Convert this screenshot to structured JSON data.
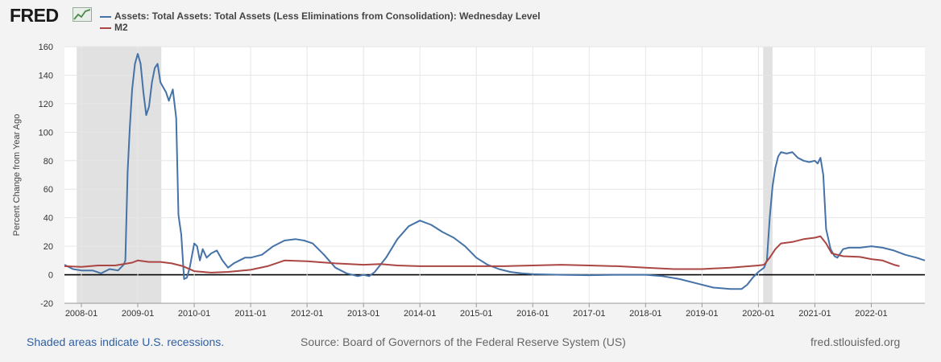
{
  "brand": {
    "logo_text": "FRED"
  },
  "legend": [
    {
      "label": "Assets: Total Assets: Total Assets (Less Eliminations from Consolidation): Wednesday Level",
      "color": "#4572a7"
    },
    {
      "label": "M2",
      "color": "#aa4643"
    }
  ],
  "footer": {
    "recession_note": "Shaded areas indicate U.S. recessions.",
    "source": "Source: Board of Governors of the Federal Reserve System (US)",
    "site": "fred.stlouisfed.org"
  },
  "chart_data": {
    "type": "line",
    "ylabel": "Percent Change from Year Ago",
    "ylim": [
      -20,
      160
    ],
    "yticks": [
      -20,
      0,
      20,
      40,
      60,
      80,
      100,
      120,
      140,
      160
    ],
    "xlim": [
      2007.7,
      2022.95
    ],
    "xticks": [
      "2008-01",
      "2009-01",
      "2010-01",
      "2011-01",
      "2012-01",
      "2013-01",
      "2014-01",
      "2015-01",
      "2016-01",
      "2017-01",
      "2018-01",
      "2019-01",
      "2020-01",
      "2021-01",
      "2022-01"
    ],
    "grid": true,
    "legend_position": "top",
    "recessions": [
      [
        2007.917,
        2009.417
      ],
      [
        2020.083,
        2020.25
      ]
    ],
    "series": [
      {
        "name": "Assets: Total Assets: Total Assets (Less Eliminations from Consolidation): Wednesday Level",
        "color": "#4572a7",
        "points": [
          [
            2007.7,
            7
          ],
          [
            2007.85,
            4
          ],
          [
            2008.0,
            3
          ],
          [
            2008.2,
            3
          ],
          [
            2008.35,
            1
          ],
          [
            2008.5,
            4
          ],
          [
            2008.65,
            3
          ],
          [
            2008.75,
            7
          ],
          [
            2008.78,
            10
          ],
          [
            2008.82,
            72
          ],
          [
            2008.86,
            104
          ],
          [
            2008.9,
            130
          ],
          [
            2008.95,
            148
          ],
          [
            2009.0,
            155
          ],
          [
            2009.05,
            148
          ],
          [
            2009.1,
            128
          ],
          [
            2009.15,
            112
          ],
          [
            2009.2,
            118
          ],
          [
            2009.25,
            135
          ],
          [
            2009.3,
            145
          ],
          [
            2009.35,
            148
          ],
          [
            2009.4,
            135
          ],
          [
            2009.5,
            128
          ],
          [
            2009.55,
            122
          ],
          [
            2009.62,
            130
          ],
          [
            2009.68,
            110
          ],
          [
            2009.72,
            42
          ],
          [
            2009.77,
            28
          ],
          [
            2009.82,
            -3
          ],
          [
            2009.87,
            -2
          ],
          [
            2009.92,
            5
          ],
          [
            2010.0,
            22
          ],
          [
            2010.05,
            20
          ],
          [
            2010.1,
            10
          ],
          [
            2010.15,
            18
          ],
          [
            2010.22,
            12
          ],
          [
            2010.3,
            15
          ],
          [
            2010.4,
            17
          ],
          [
            2010.5,
            10
          ],
          [
            2010.6,
            5
          ],
          [
            2010.7,
            8
          ],
          [
            2010.8,
            10
          ],
          [
            2010.9,
            12
          ],
          [
            2011.0,
            12
          ],
          [
            2011.2,
            14
          ],
          [
            2011.4,
            20
          ],
          [
            2011.6,
            24
          ],
          [
            2011.8,
            25
          ],
          [
            2011.95,
            24
          ],
          [
            2012.1,
            22
          ],
          [
            2012.3,
            14
          ],
          [
            2012.5,
            5
          ],
          [
            2012.7,
            1
          ],
          [
            2012.9,
            -1
          ],
          [
            2013.0,
            0
          ],
          [
            2013.1,
            -1
          ],
          [
            2013.2,
            2
          ],
          [
            2013.4,
            12
          ],
          [
            2013.6,
            25
          ],
          [
            2013.8,
            34
          ],
          [
            2014.0,
            38
          ],
          [
            2014.2,
            35
          ],
          [
            2014.4,
            30
          ],
          [
            2014.6,
            26
          ],
          [
            2014.8,
            20
          ],
          [
            2015.0,
            12
          ],
          [
            2015.2,
            7
          ],
          [
            2015.4,
            4
          ],
          [
            2015.6,
            2
          ],
          [
            2015.8,
            1
          ],
          [
            2016.0,
            0.5
          ],
          [
            2016.5,
            0
          ],
          [
            2017.0,
            -0.3
          ],
          [
            2017.5,
            0
          ],
          [
            2018.0,
            0
          ],
          [
            2018.3,
            -1
          ],
          [
            2018.6,
            -3
          ],
          [
            2018.9,
            -6
          ],
          [
            2019.2,
            -9
          ],
          [
            2019.5,
            -10
          ],
          [
            2019.7,
            -10
          ],
          [
            2019.8,
            -7
          ],
          [
            2019.9,
            -2
          ],
          [
            2020.0,
            2
          ],
          [
            2020.1,
            5
          ],
          [
            2020.15,
            10
          ],
          [
            2020.2,
            40
          ],
          [
            2020.25,
            62
          ],
          [
            2020.3,
            75
          ],
          [
            2020.35,
            83
          ],
          [
            2020.4,
            86
          ],
          [
            2020.5,
            85
          ],
          [
            2020.6,
            86
          ],
          [
            2020.7,
            82
          ],
          [
            2020.8,
            80
          ],
          [
            2020.9,
            79
          ],
          [
            2021.0,
            80
          ],
          [
            2021.05,
            78
          ],
          [
            2021.1,
            82
          ],
          [
            2021.15,
            70
          ],
          [
            2021.2,
            32
          ],
          [
            2021.28,
            18
          ],
          [
            2021.35,
            13
          ],
          [
            2021.4,
            12
          ],
          [
            2021.5,
            18
          ],
          [
            2021.6,
            19
          ],
          [
            2021.8,
            19
          ],
          [
            2022.0,
            20
          ],
          [
            2022.2,
            19
          ],
          [
            2022.4,
            17
          ],
          [
            2022.6,
            14
          ],
          [
            2022.8,
            12
          ],
          [
            2022.95,
            10
          ]
        ]
      },
      {
        "name": "M2",
        "color": "#aa4643",
        "points": [
          [
            2007.7,
            6
          ],
          [
            2008.0,
            5.5
          ],
          [
            2008.3,
            6.5
          ],
          [
            2008.6,
            6.5
          ],
          [
            2008.9,
            8.5
          ],
          [
            2009.0,
            10
          ],
          [
            2009.2,
            9
          ],
          [
            2009.4,
            9
          ],
          [
            2009.6,
            8
          ],
          [
            2009.8,
            6
          ],
          [
            2010.0,
            2.5
          ],
          [
            2010.3,
            1.5
          ],
          [
            2010.6,
            2
          ],
          [
            2011.0,
            3.5
          ],
          [
            2011.3,
            6
          ],
          [
            2011.6,
            10
          ],
          [
            2012.0,
            9.5
          ],
          [
            2012.5,
            8
          ],
          [
            2013.0,
            7
          ],
          [
            2013.3,
            7.5
          ],
          [
            2013.6,
            6.5
          ],
          [
            2014.0,
            6
          ],
          [
            2014.5,
            6
          ],
          [
            2015.0,
            6
          ],
          [
            2015.5,
            6
          ],
          [
            2016.0,
            6.5
          ],
          [
            2016.5,
            7
          ],
          [
            2017.0,
            6.5
          ],
          [
            2017.5,
            6
          ],
          [
            2018.0,
            5
          ],
          [
            2018.5,
            4
          ],
          [
            2019.0,
            4
          ],
          [
            2019.5,
            5
          ],
          [
            2020.0,
            6.5
          ],
          [
            2020.1,
            7
          ],
          [
            2020.2,
            12
          ],
          [
            2020.3,
            18
          ],
          [
            2020.4,
            22
          ],
          [
            2020.6,
            23
          ],
          [
            2020.8,
            25
          ],
          [
            2021.0,
            26
          ],
          [
            2021.1,
            27
          ],
          [
            2021.2,
            22
          ],
          [
            2021.3,
            15
          ],
          [
            2021.5,
            13
          ],
          [
            2021.8,
            12.5
          ],
          [
            2022.0,
            11
          ],
          [
            2022.2,
            10
          ],
          [
            2022.4,
            7
          ],
          [
            2022.5,
            6
          ]
        ]
      }
    ]
  }
}
